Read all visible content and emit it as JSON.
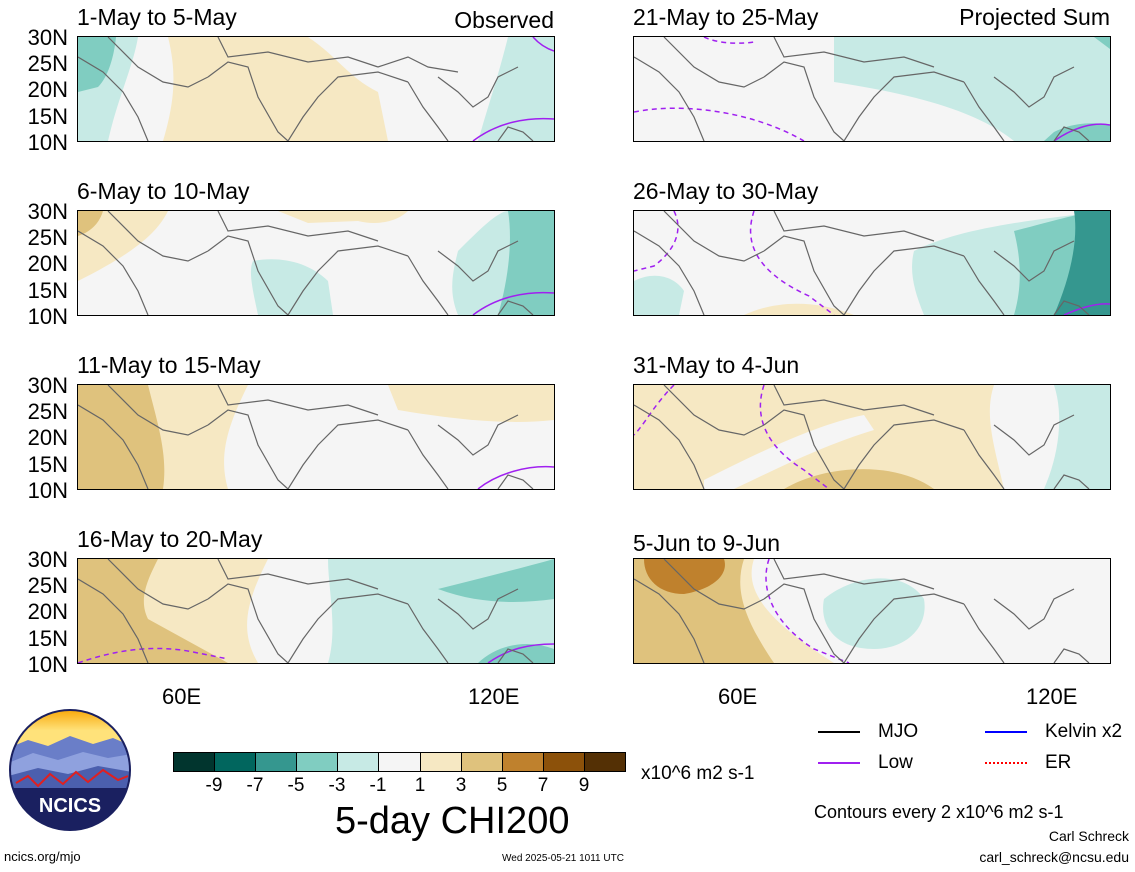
{
  "left_column_header": "Observed",
  "right_column_header": "Projected Sum",
  "panels_left": [
    {
      "title": "1-May to 5-May"
    },
    {
      "title": "6-May to 10-May"
    },
    {
      "title": "11-May to 15-May"
    },
    {
      "title": "16-May to 20-May"
    }
  ],
  "panels_right": [
    {
      "title": "21-May to 25-May"
    },
    {
      "title": "26-May to 30-May"
    },
    {
      "title": "31-May to 4-Jun"
    },
    {
      "title": "5-Jun to 9-Jun"
    }
  ],
  "lat_labels": [
    "30N",
    "25N",
    "20N",
    "15N",
    "10N"
  ],
  "lon_labels": [
    "60E",
    "120E"
  ],
  "colorbar": {
    "colors": [
      "#01352e",
      "#01665e",
      "#35978f",
      "#80cdc1",
      "#c7eae5",
      "#f5f5f5",
      "#f6e8c3",
      "#dfc27d",
      "#bf812d",
      "#8c510a",
      "#543005"
    ],
    "labels": [
      "-9",
      "-7",
      "-5",
      "-3",
      "-1",
      "1",
      "3",
      "5",
      "7",
      "9"
    ],
    "units": "x10^6 m2 s-1",
    "title": "5-day CHI200"
  },
  "legend": [
    {
      "label": "MJO",
      "color": "#000000"
    },
    {
      "label": "Kelvin x2",
      "color": "#0000ff"
    },
    {
      "label": "Low",
      "color": "#a020f0"
    },
    {
      "label": "ER",
      "color": "#ff0000"
    }
  ],
  "contour_note": "Contours every 2 x10^6 m2 s-1",
  "author_name": "Carl Schreck",
  "author_email": "carl_schreck@ncsu.edu",
  "logo_text": "NCICS",
  "site": "ncics.org/mjo",
  "timestamp": "Wed 2025-05-21 1011 UTC"
}
